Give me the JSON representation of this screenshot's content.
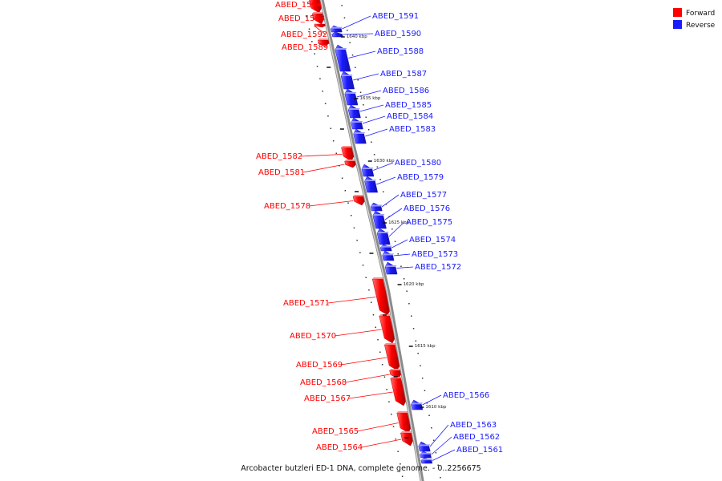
{
  "caption": "Arcobacter butzleri ED-1 DNA, complete genome. - 0..2256675",
  "colors": {
    "forward": "#ff0000",
    "reverse": "#1a1aff",
    "axis": "#888888"
  },
  "legend": [
    {
      "label": "Forward",
      "strand": "forward"
    },
    {
      "label": "Reverse",
      "strand": "reverse"
    }
  ],
  "scale": {
    "tick_labels": [
      "1640 kbp",
      "1635 kbp",
      "1630 kbp",
      "1625 kbp",
      "1620 kbp",
      "1615 kbp",
      "1610 kbp"
    ]
  },
  "genes": [
    {
      "name": "ABED_1594",
      "strand": "forward"
    },
    {
      "name": "ABED_1593",
      "strand": "forward"
    },
    {
      "name": "ABED_1592",
      "strand": "forward"
    },
    {
      "name": "ABED_1589",
      "strand": "forward"
    },
    {
      "name": "ABED_1591",
      "strand": "reverse"
    },
    {
      "name": "ABED_1590",
      "strand": "reverse"
    },
    {
      "name": "ABED_1588",
      "strand": "reverse"
    },
    {
      "name": "ABED_1587",
      "strand": "reverse"
    },
    {
      "name": "ABED_1586",
      "strand": "reverse"
    },
    {
      "name": "ABED_1585",
      "strand": "reverse"
    },
    {
      "name": "ABED_1584",
      "strand": "reverse"
    },
    {
      "name": "ABED_1583",
      "strand": "reverse"
    },
    {
      "name": "ABED_1582",
      "strand": "forward"
    },
    {
      "name": "ABED_1581",
      "strand": "forward"
    },
    {
      "name": "ABED_1580",
      "strand": "reverse"
    },
    {
      "name": "ABED_1579",
      "strand": "reverse"
    },
    {
      "name": "ABED_1578",
      "strand": "forward"
    },
    {
      "name": "ABED_1577",
      "strand": "reverse"
    },
    {
      "name": "ABED_1576",
      "strand": "reverse"
    },
    {
      "name": "ABED_1575",
      "strand": "reverse"
    },
    {
      "name": "ABED_1574",
      "strand": "reverse"
    },
    {
      "name": "ABED_1573",
      "strand": "reverse"
    },
    {
      "name": "ABED_1572",
      "strand": "reverse"
    },
    {
      "name": "ABED_1571",
      "strand": "forward"
    },
    {
      "name": "ABED_1570",
      "strand": "forward"
    },
    {
      "name": "ABED_1569",
      "strand": "forward"
    },
    {
      "name": "ABED_1568",
      "strand": "forward"
    },
    {
      "name": "ABED_1567",
      "strand": "forward"
    },
    {
      "name": "ABED_1566",
      "strand": "reverse"
    },
    {
      "name": "ABED_1565",
      "strand": "forward"
    },
    {
      "name": "ABED_1564",
      "strand": "forward"
    },
    {
      "name": "ABED_1563",
      "strand": "reverse"
    },
    {
      "name": "ABED_1562",
      "strand": "reverse"
    },
    {
      "name": "ABED_1561",
      "strand": "reverse"
    }
  ]
}
